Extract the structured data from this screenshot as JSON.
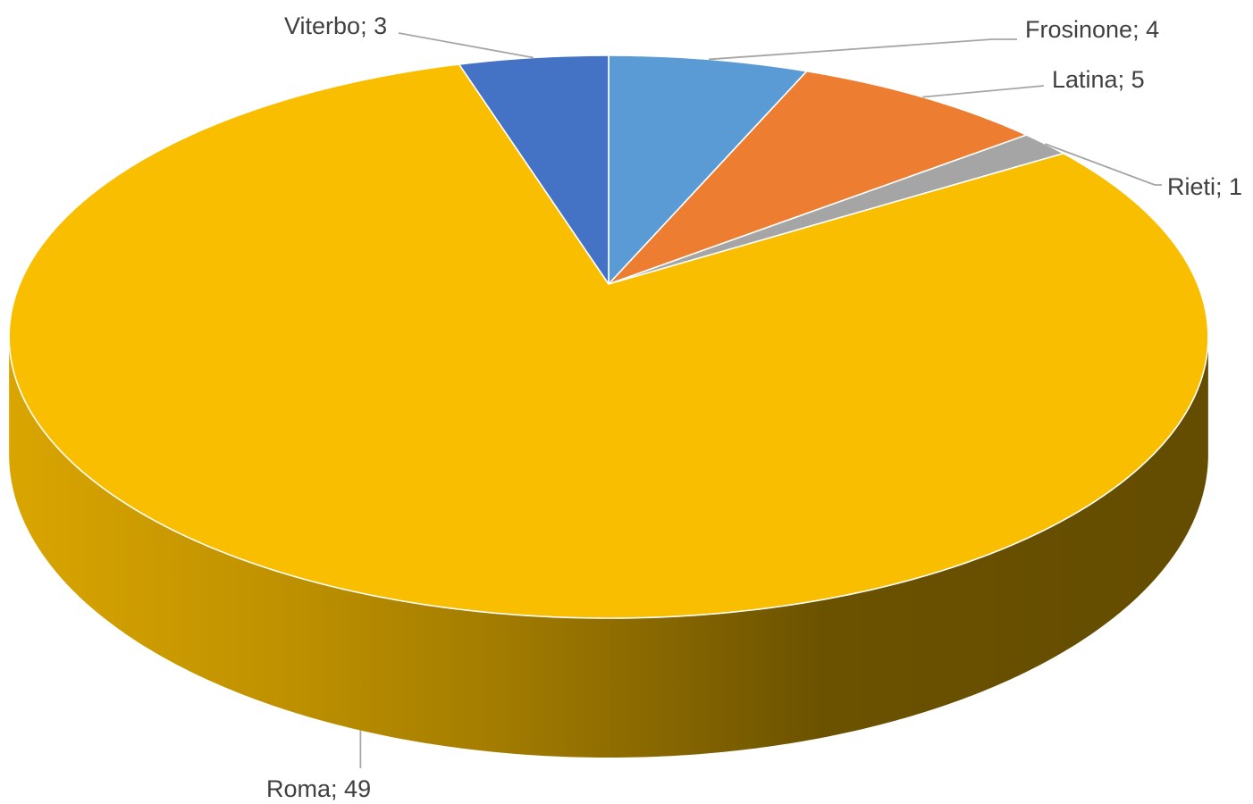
{
  "chart_data": {
    "type": "pie",
    "three_d": true,
    "categories": [
      "Frosinone",
      "Latina",
      "Rieti",
      "Roma",
      "Viterbo"
    ],
    "values": [
      4,
      5,
      1,
      49,
      3
    ],
    "colors": [
      "#5B9BD5",
      "#ED7D31",
      "#A5A5A5",
      "#F9BE00",
      "#4472C4"
    ],
    "label_separator": "; "
  }
}
